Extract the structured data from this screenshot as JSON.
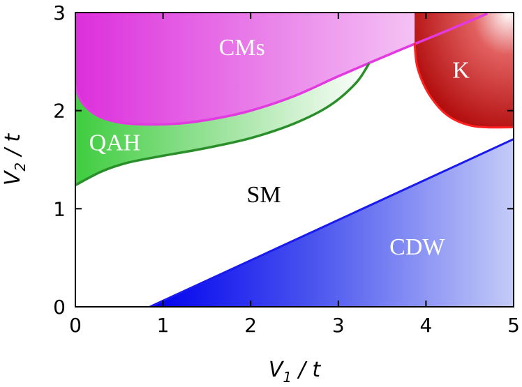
{
  "chart_data": {
    "type": "area",
    "title": "",
    "xlabel": {
      "main": "V",
      "sub": "1",
      "rest": " / t"
    },
    "ylabel": {
      "main": "V",
      "sub": "2",
      "rest": " / t"
    },
    "xlim": [
      0,
      5
    ],
    "ylim": [
      0,
      3
    ],
    "xticks": [
      "0",
      "1",
      "2",
      "3",
      "4",
      "5"
    ],
    "yticks": [
      "0",
      "1",
      "2",
      "3"
    ],
    "grid": false,
    "regions": [
      {
        "name": "CMs",
        "color": "#e23ae0",
        "boundary": [
          [
            0,
            2.24
          ],
          [
            0.08,
            2.08
          ],
          [
            0.25,
            1.95
          ],
          [
            0.5,
            1.88
          ],
          [
            0.8,
            1.86
          ],
          [
            1.2,
            1.87
          ],
          [
            1.6,
            1.92
          ],
          [
            2.0,
            2.0
          ],
          [
            2.5,
            2.15
          ],
          [
            3.0,
            2.35
          ],
          [
            3.6,
            2.58
          ],
          [
            4.2,
            2.8
          ],
          [
            4.7,
            2.99
          ]
        ],
        "label_pos": [
          1.9,
          2.65
        ]
      },
      {
        "name": "QAH",
        "color": "#2fc42f",
        "lower_boundary": [
          [
            0,
            1.24
          ],
          [
            0.3,
            1.38
          ],
          [
            0.6,
            1.47
          ],
          [
            1.0,
            1.54
          ],
          [
            1.5,
            1.62
          ],
          [
            2.0,
            1.72
          ],
          [
            2.5,
            1.87
          ],
          [
            2.9,
            2.05
          ],
          [
            3.2,
            2.28
          ],
          [
            3.35,
            2.48
          ]
        ],
        "label_pos": [
          0.45,
          1.68
        ]
      },
      {
        "name": "SM",
        "color": "#ffffff",
        "label_pos": [
          2.15,
          1.15
        ]
      },
      {
        "name": "K",
        "color": "#c51414",
        "boundary": [
          [
            3.87,
            2.69
          ],
          [
            3.9,
            2.45
          ],
          [
            4.0,
            2.22
          ],
          [
            4.15,
            2.03
          ],
          [
            4.3,
            1.92
          ],
          [
            4.5,
            1.85
          ],
          [
            4.7,
            1.83
          ],
          [
            5.0,
            1.83
          ]
        ],
        "label_pos": [
          4.4,
          2.42
        ]
      },
      {
        "name": "CDW",
        "color": "#1a1aee",
        "boundary": [
          [
            0.85,
            0.0
          ],
          [
            5.0,
            1.71
          ]
        ],
        "label_pos": [
          3.9,
          0.62
        ]
      }
    ]
  }
}
